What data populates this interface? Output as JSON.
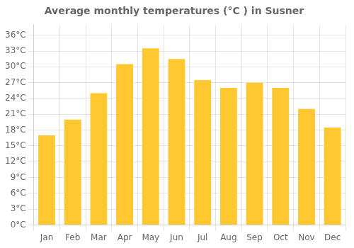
{
  "chart_data": {
    "type": "bar",
    "title": "Average monthly temperatures (°C ) in Susner",
    "categories": [
      "Jan",
      "Feb",
      "Mar",
      "Apr",
      "May",
      "Jun",
      "Jul",
      "Aug",
      "Sep",
      "Oct",
      "Nov",
      "Dec"
    ],
    "values": [
      17,
      20,
      25,
      30.5,
      33.5,
      31.5,
      27.5,
      26,
      27,
      26,
      22,
      18.5
    ],
    "color": "#FFC830",
    "ylim": [
      0,
      38
    ],
    "yticks": [
      {
        "value": 0,
        "label": "0°C"
      },
      {
        "value": 3,
        "label": "3°C"
      },
      {
        "value": 6,
        "label": "6°C"
      },
      {
        "value": 9,
        "label": "9°C"
      },
      {
        "value": 12,
        "label": "12°C"
      },
      {
        "value": 15,
        "label": "15°C"
      },
      {
        "value": 18,
        "label": "18°C"
      },
      {
        "value": 21,
        "label": "21°C"
      },
      {
        "value": 24,
        "label": "24°C"
      },
      {
        "value": 27,
        "label": "27°C"
      },
      {
        "value": 30,
        "label": "30°C"
      },
      {
        "value": 33,
        "label": "33°C"
      },
      {
        "value": 36,
        "label": "36°C"
      }
    ],
    "grid": true
  }
}
